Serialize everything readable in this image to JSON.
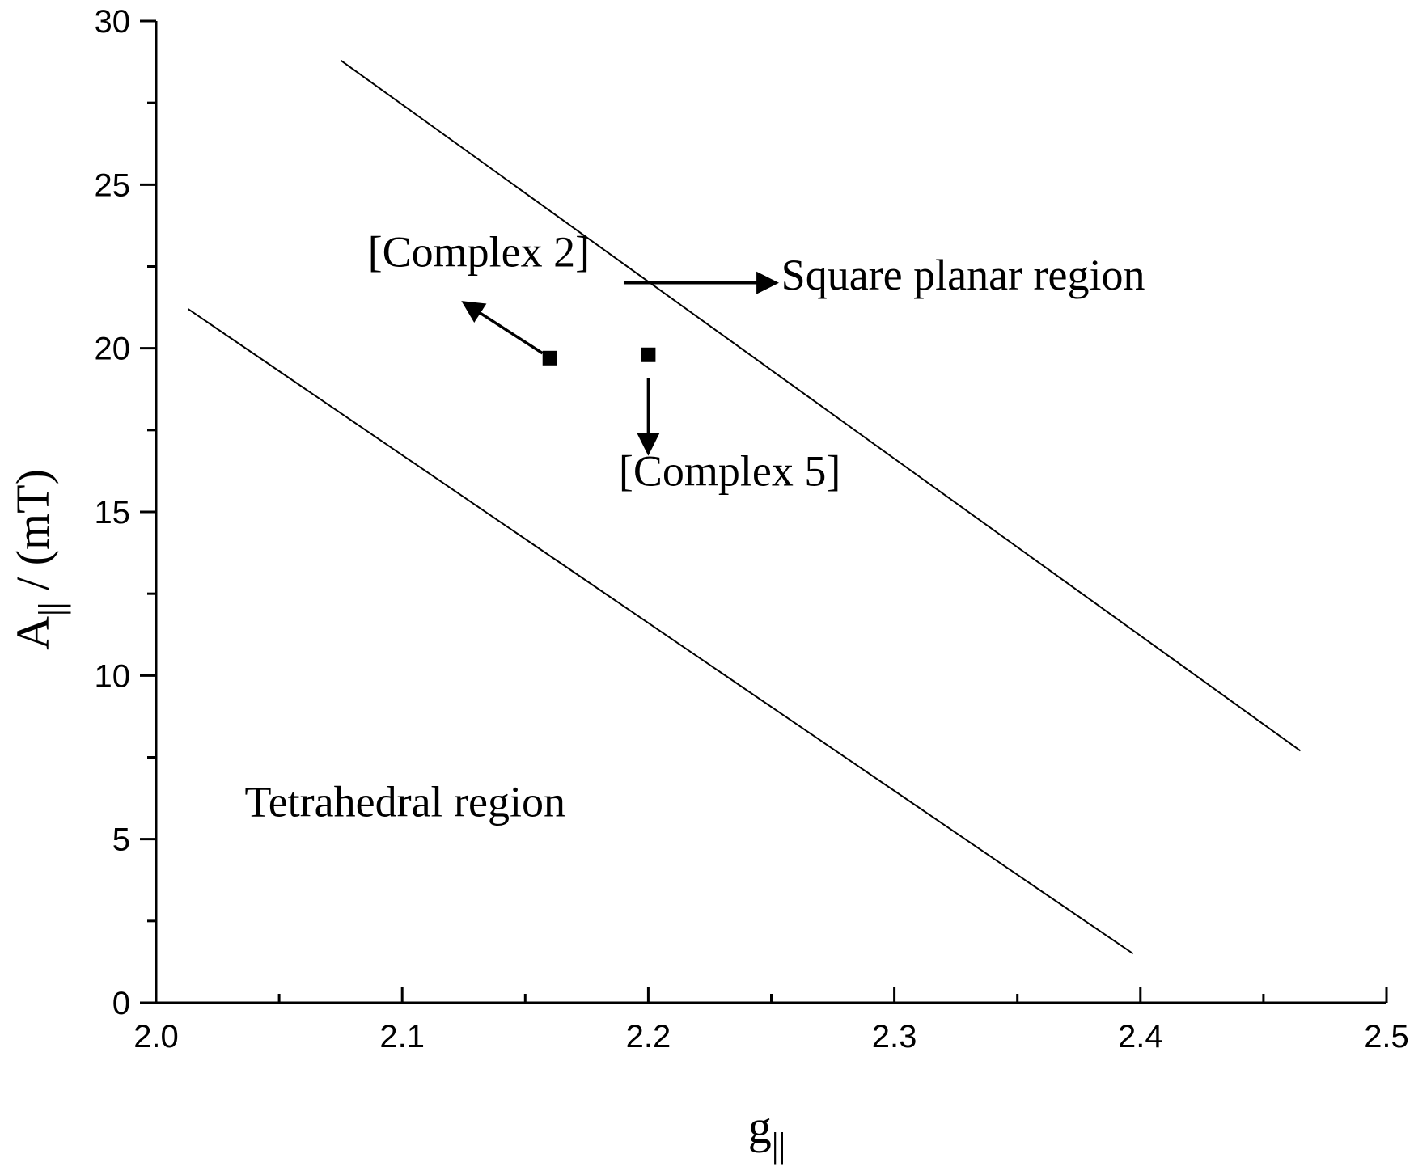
{
  "chart_data": {
    "type": "scatter",
    "xlabel_main": "g",
    "xlabel_sub": "||",
    "ylabel_main": "A",
    "ylabel_sub": "||",
    "ylabel_rest": " / (mT)",
    "xlim": [
      2.0,
      2.5
    ],
    "ylim": [
      0,
      30
    ],
    "x_ticks": [
      2.0,
      2.1,
      2.2,
      2.3,
      2.4,
      2.5
    ],
    "x_tick_labels": [
      "2.0",
      "2.1",
      "2.2",
      "2.3",
      "2.4",
      "2.5"
    ],
    "x_minor_ticks": [
      2.05,
      2.15,
      2.25,
      2.35,
      2.45
    ],
    "y_ticks": [
      0,
      5,
      10,
      15,
      20,
      25,
      30
    ],
    "y_tick_labels": [
      "0",
      "5",
      "10",
      "15",
      "20",
      "25",
      "30"
    ],
    "y_minor_ticks": [
      2.5,
      7.5,
      12.5,
      17.5,
      22.5,
      27.5
    ],
    "grid": false,
    "colors": {
      "foreground": "#000000",
      "background": "#ffffff"
    },
    "boundary_lines": [
      {
        "x": [
          2.075,
          2.465
        ],
        "y": [
          28.8,
          7.7
        ]
      },
      {
        "x": [
          2.013,
          2.397
        ],
        "y": [
          21.2,
          1.5
        ]
      }
    ],
    "series": [
      {
        "points": [
          {
            "x": 2.16,
            "y": 19.7
          },
          {
            "x": 2.2,
            "y": 19.8
          }
        ]
      }
    ],
    "annotations": [
      {
        "text": "[Complex 2]",
        "x": 2.086,
        "y": 22.5
      },
      {
        "text": "[Complex 5]",
        "x": 2.188,
        "y": 15.8
      },
      {
        "text": "Square planar region",
        "x": 2.254,
        "y": 21.8
      },
      {
        "text": "Tetrahedral region",
        "x": 2.036,
        "y": 5.7
      }
    ],
    "arrows": [
      {
        "from": {
          "x": 2.157,
          "y": 19.85
        },
        "to": {
          "x": 2.125,
          "y": 21.4
        }
      },
      {
        "from": {
          "x": 2.2,
          "y": 19.1
        },
        "to": {
          "x": 2.2,
          "y": 16.8
        }
      },
      {
        "from": {
          "x": 2.19,
          "y": 22.0
        },
        "to": {
          "x": 2.252,
          "y": 22.0
        }
      }
    ]
  }
}
